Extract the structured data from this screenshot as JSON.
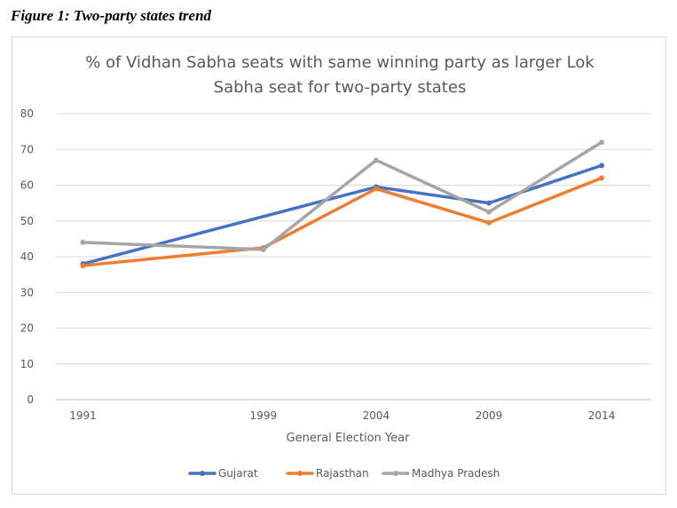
{
  "caption": "Figure 1: Two-party states trend",
  "chart_data": {
    "type": "line",
    "title_lines": [
      "% of Vidhan Sabha seats with same winning party as larger Lok",
      "Sabha seat for two-party states"
    ],
    "xlabel": "General Election Year",
    "ylabel": "",
    "x": [
      1991,
      1999,
      2004,
      2009,
      2014
    ],
    "x_tick_labels": [
      "1991",
      "1999",
      "2004",
      "2009",
      "2014"
    ],
    "ylim": [
      0,
      80
    ],
    "y_ticks": [
      0,
      10,
      20,
      30,
      40,
      50,
      60,
      70,
      80
    ],
    "y_tick_labels": [
      "0",
      "10",
      "20",
      "30",
      "40",
      "50",
      "60",
      "70",
      "80"
    ],
    "grid": true,
    "legend_position": "bottom",
    "series": [
      {
        "name": "Gujarat",
        "color": "#4472c4",
        "x": [
          1991,
          2004,
          2009,
          2014
        ],
        "values": [
          38,
          59.5,
          55,
          65.5
        ]
      },
      {
        "name": "Rajasthan",
        "color": "#ed7d31",
        "x": [
          1991,
          1999,
          2004,
          2009,
          2014
        ],
        "values": [
          37.5,
          42.5,
          59,
          49.5,
          62
        ]
      },
      {
        "name": "Madhya Pradesh",
        "color": "#a5a5a5",
        "x": [
          1991,
          1999,
          2004,
          2009,
          2014
        ],
        "values": [
          44,
          42,
          67,
          52.5,
          72
        ]
      }
    ]
  }
}
